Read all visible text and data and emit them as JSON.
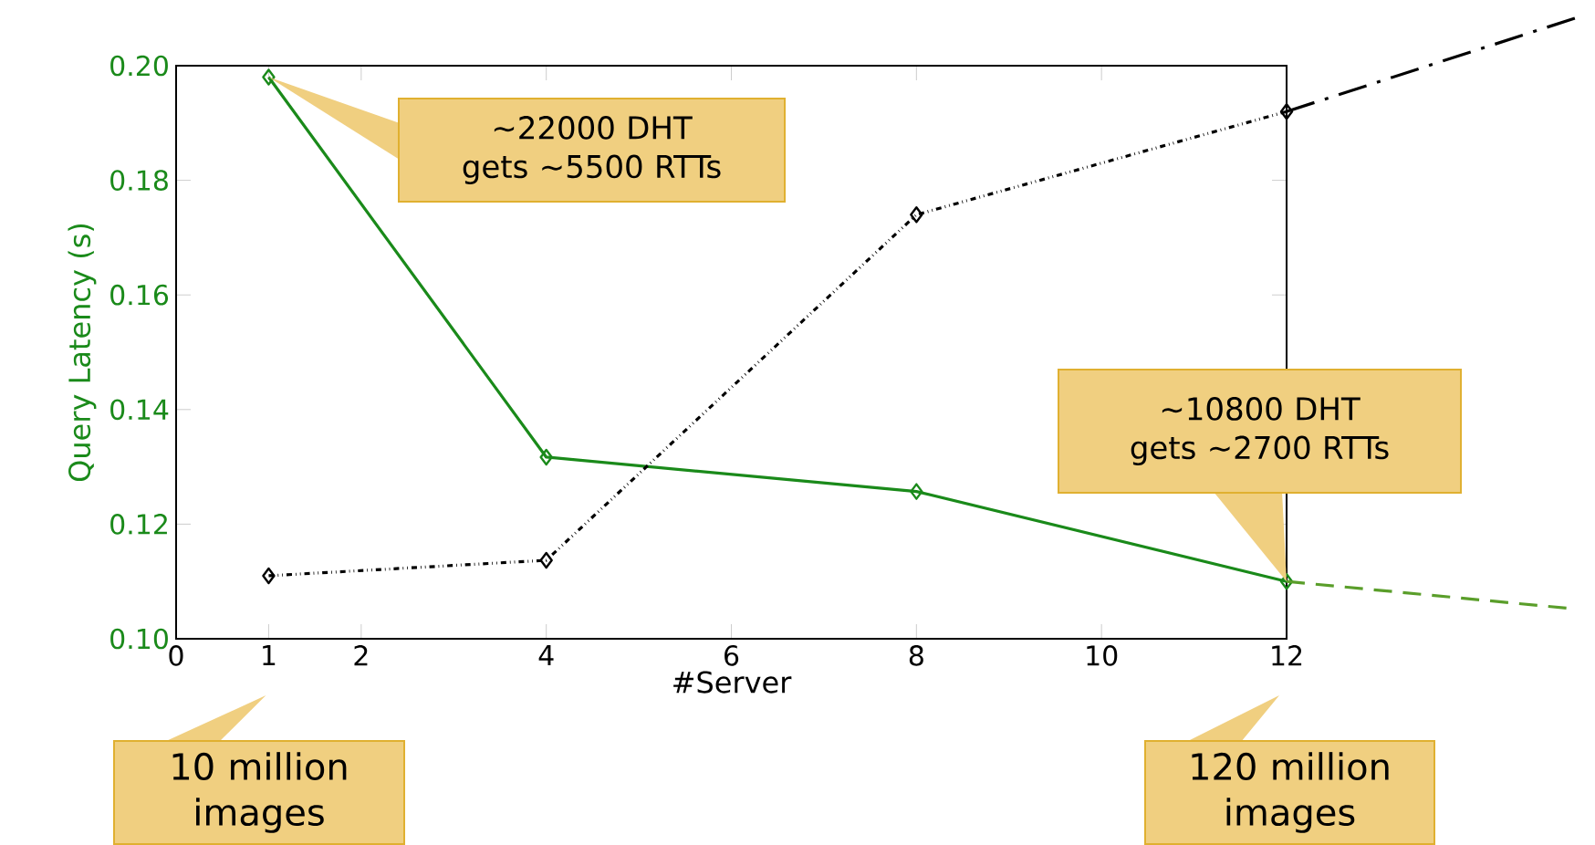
{
  "chart_data": {
    "type": "line",
    "xlabel": "#Server",
    "ylabel": "Query Latency (s)",
    "x": [
      1,
      4,
      8,
      12
    ],
    "series": [
      {
        "color": "#1a8a1a",
        "values": [
          0.198,
          0.1317,
          0.1257,
          0.11
        ],
        "line_style": "solid"
      },
      {
        "color": "#000000",
        "values": [
          0.111,
          0.1137,
          0.174,
          0.192
        ],
        "line_style": "dotted"
      }
    ],
    "xlim": [
      0,
      12
    ],
    "xticks": [
      0,
      {
        "value": 1,
        "label": "1"
      },
      2,
      4,
      6,
      8,
      10,
      12
    ],
    "ylim": [
      0.1,
      0.2
    ],
    "yticks": [
      {
        "value": 0.1,
        "label": "0.10"
      },
      {
        "value": 0.12,
        "label": "0.12"
      },
      {
        "value": 0.14,
        "label": "0.14"
      },
      {
        "value": 0.16,
        "label": "0.16"
      },
      {
        "value": 0.18,
        "label": "0.18"
      },
      {
        "value": 0.2,
        "label": "0.20"
      }
    ],
    "marker": "diamond",
    "grid": false,
    "annotations": [
      "~22000 DHT gets ~5500 RTTs",
      "~10800 DHT gets ~2700 RTTs",
      "10 million images",
      "120 million images"
    ]
  }
}
